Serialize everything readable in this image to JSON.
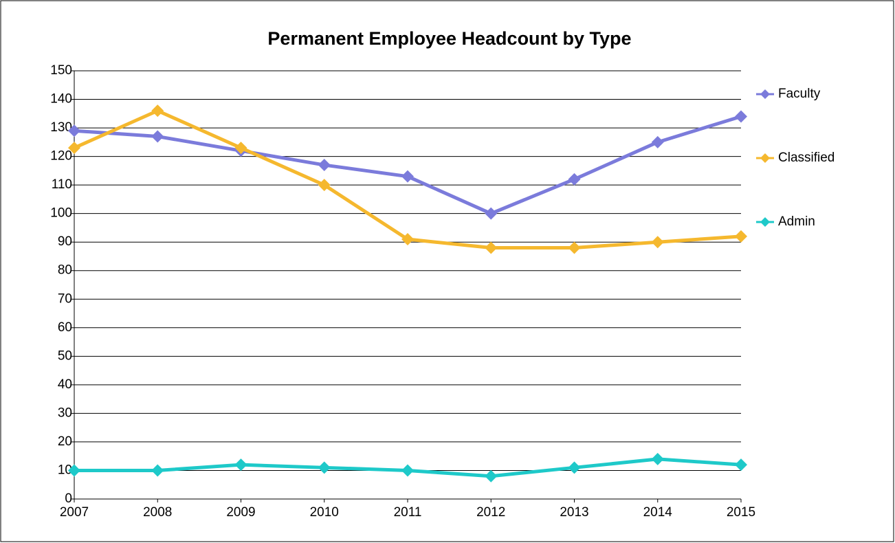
{
  "chart_data": {
    "type": "line",
    "title": "Permanent Employee Headcount by Type",
    "x": [
      2007,
      2008,
      2009,
      2010,
      2011,
      2012,
      2013,
      2014,
      2015
    ],
    "xlim": [
      2007,
      2015
    ],
    "xticks": [
      2007,
      2008,
      2009,
      2010,
      2011,
      2012,
      2013,
      2014,
      2015
    ],
    "ylim": [
      0,
      150
    ],
    "yticks": [
      0,
      10,
      20,
      30,
      40,
      50,
      60,
      70,
      80,
      90,
      100,
      110,
      120,
      130,
      140,
      150
    ],
    "grid": true,
    "legend": "right",
    "series": [
      {
        "name": "Faculty",
        "color": "#7b7bdb",
        "values": [
          129,
          127,
          122,
          117,
          113,
          100,
          112,
          125,
          134
        ]
      },
      {
        "name": "Classified",
        "color": "#f5b82e",
        "values": [
          123,
          136,
          123,
          110,
          91,
          88,
          88,
          90,
          92
        ]
      },
      {
        "name": "Admin",
        "color": "#1ec9c9",
        "values": [
          10,
          10,
          12,
          11,
          10,
          8,
          11,
          14,
          12
        ]
      }
    ]
  }
}
